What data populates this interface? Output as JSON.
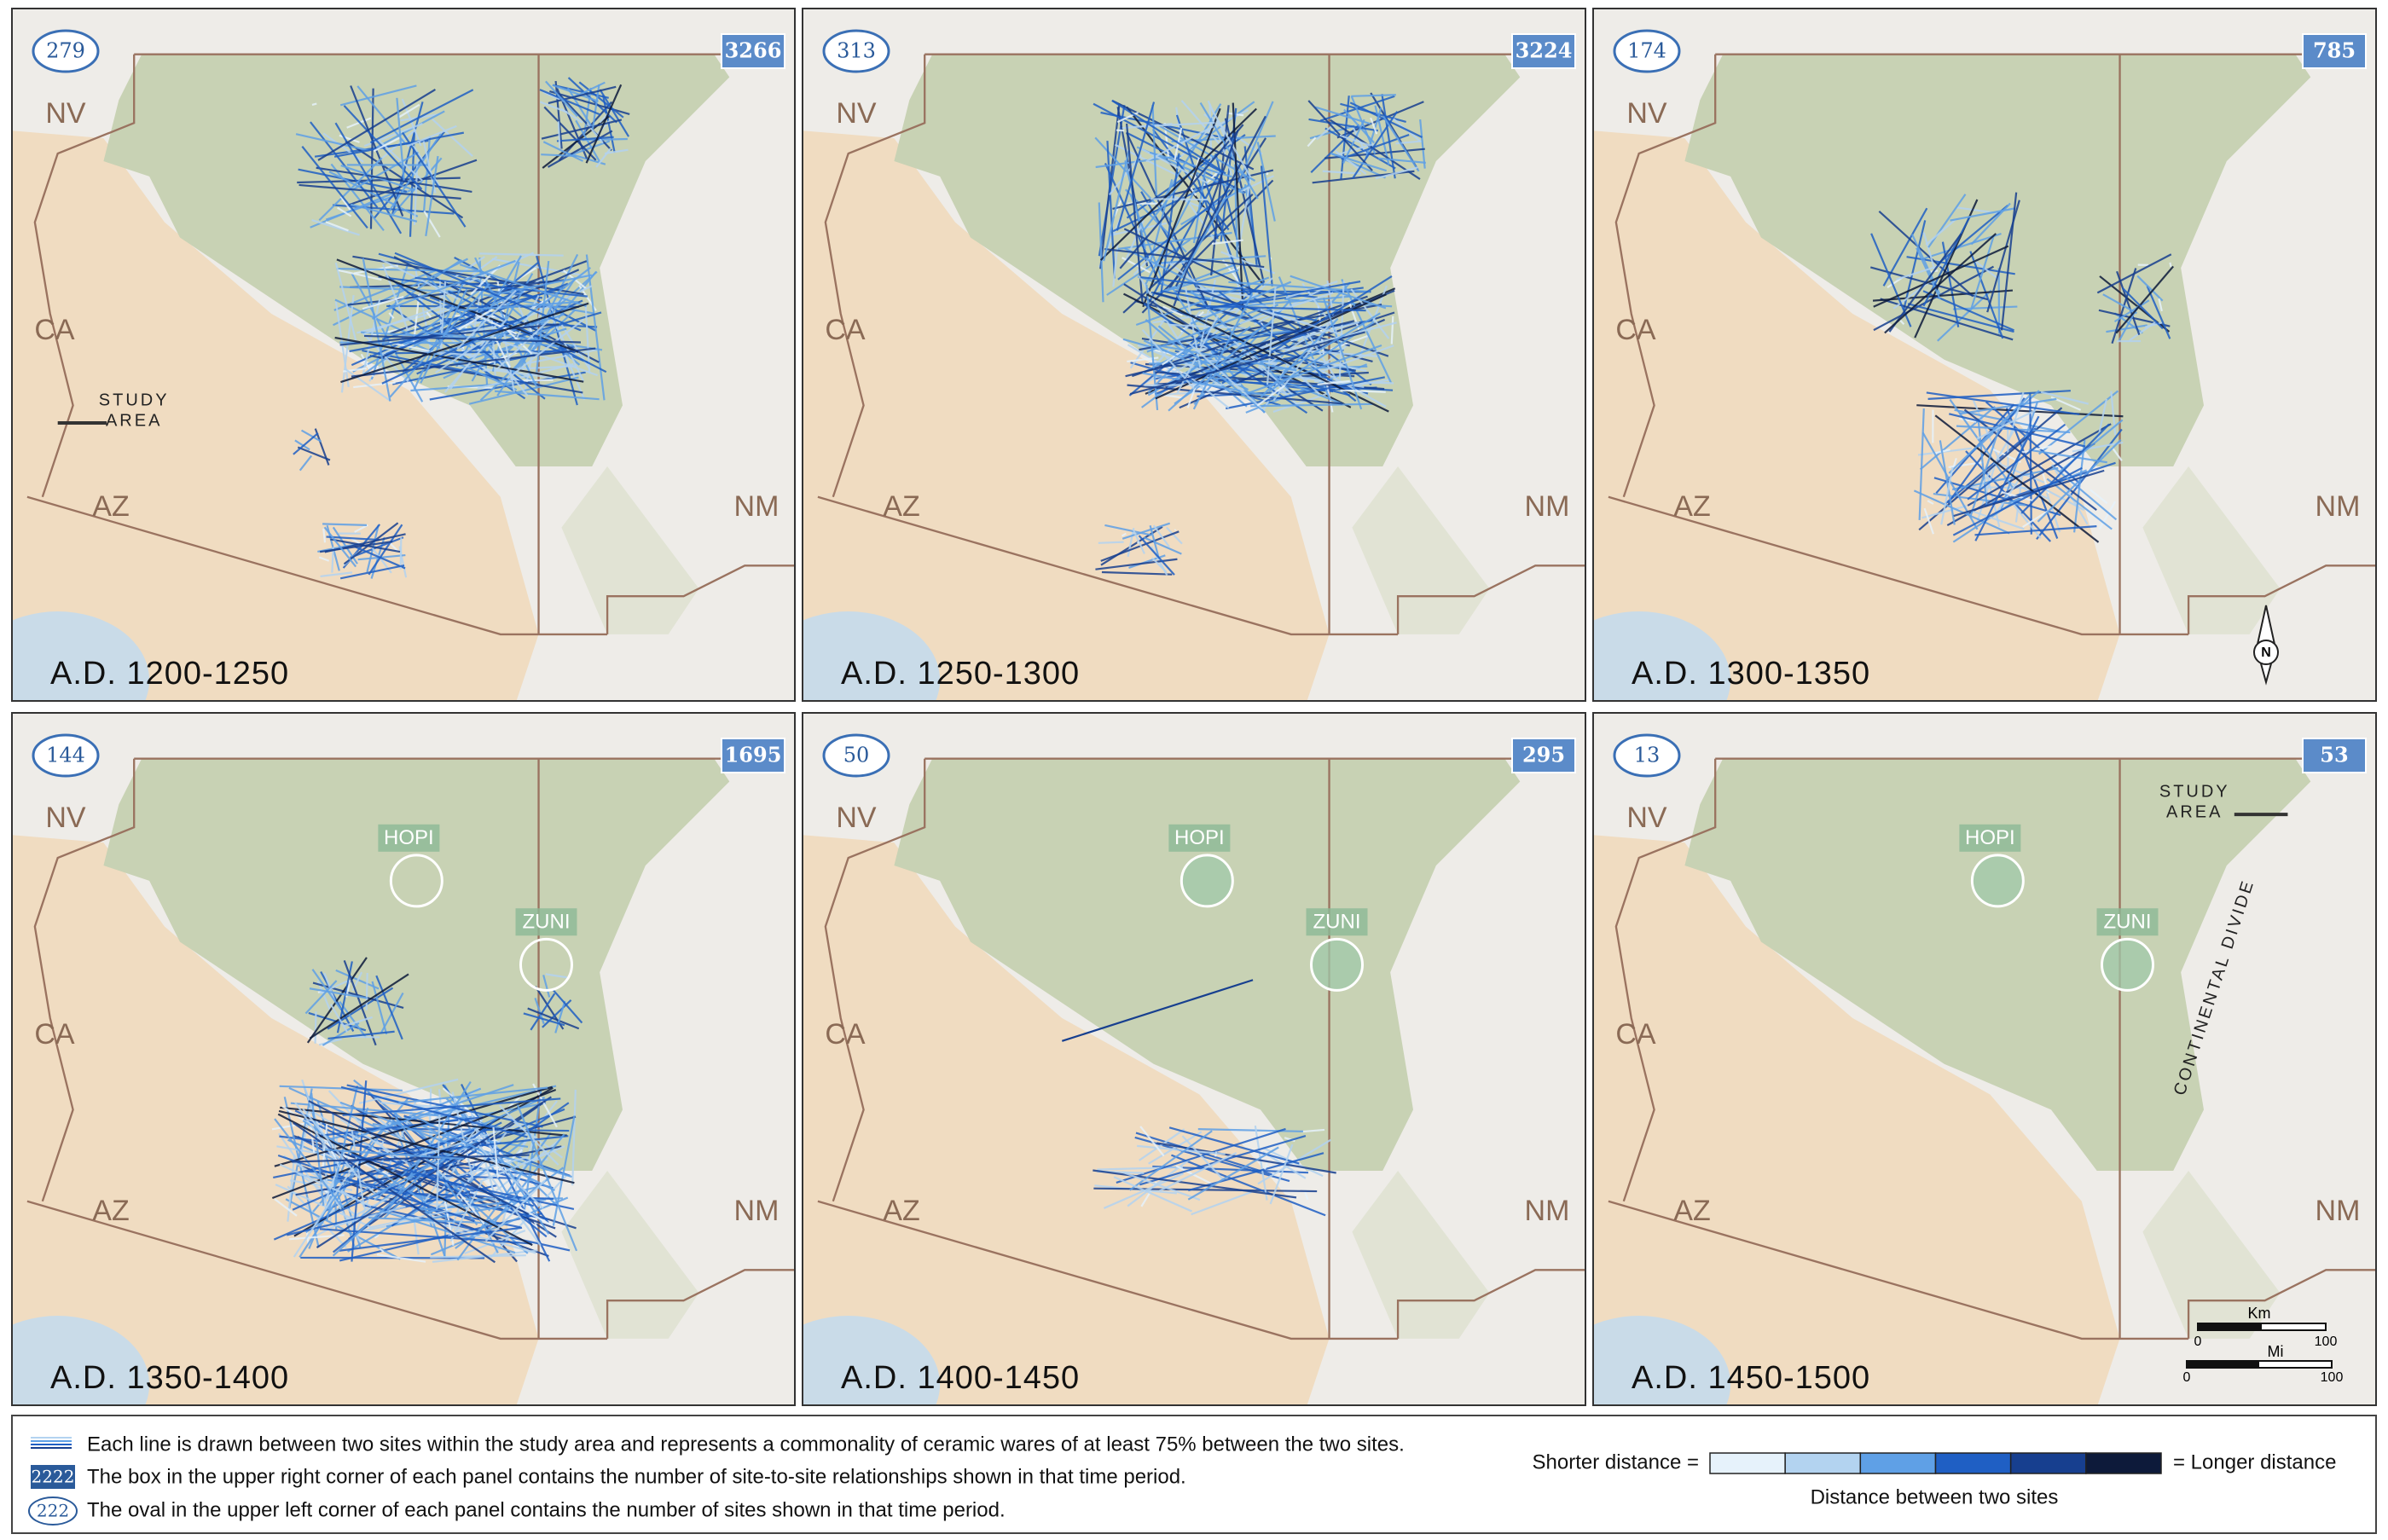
{
  "panels": [
    {
      "period": "A.D. 1200-1250",
      "sites": 279,
      "relationships": 3266
    },
    {
      "period": "A.D. 1250-1300",
      "sites": 313,
      "relationships": 3224
    },
    {
      "period": "A.D. 1300-1350",
      "sites": 174,
      "relationships": 785
    },
    {
      "period": "A.D. 1350-1400",
      "sites": 144,
      "relationships": 1695
    },
    {
      "period": "A.D. 1400-1450",
      "sites": 50,
      "relationships": 295
    },
    {
      "period": "A.D. 1450-1500",
      "sites": 13,
      "relationships": 53
    }
  ],
  "state_labels": [
    "NV",
    "CA",
    "AZ",
    "NM"
  ],
  "study_area": [
    "STUDY",
    "AREA"
  ],
  "pueblos": [
    "HOPI",
    "ZUNI"
  ],
  "continental_divide": "CONTINENTAL DIVIDE",
  "north_arrow": "N",
  "scale_bar": {
    "km": "Km",
    "mi": "Mi",
    "km_ticks": [
      0,
      100
    ],
    "mi_ticks": [
      0,
      100
    ]
  },
  "legend": {
    "line_note": "Each line is drawn between two sites within the study area and represents a commonality of ceramic wares of at least 75% between the two sites.",
    "box_example": 2222,
    "box_note": "The box in the upper right corner of each panel contains the number of site-to-site relationships shown in that time period.",
    "oval_example": 222,
    "oval_note": "The oval in the upper left corner of each panel contains the number of sites shown in that time period.",
    "shorter": "Shorter distance =",
    "longer": "= Longer distance",
    "axis_label": "Distance between two sites",
    "colors": [
      "#e6f2fb",
      "#b3d3f0",
      "#5fa0e6",
      "#1f5fc4",
      "#173f8f",
      "#0d1a3a"
    ]
  }
}
